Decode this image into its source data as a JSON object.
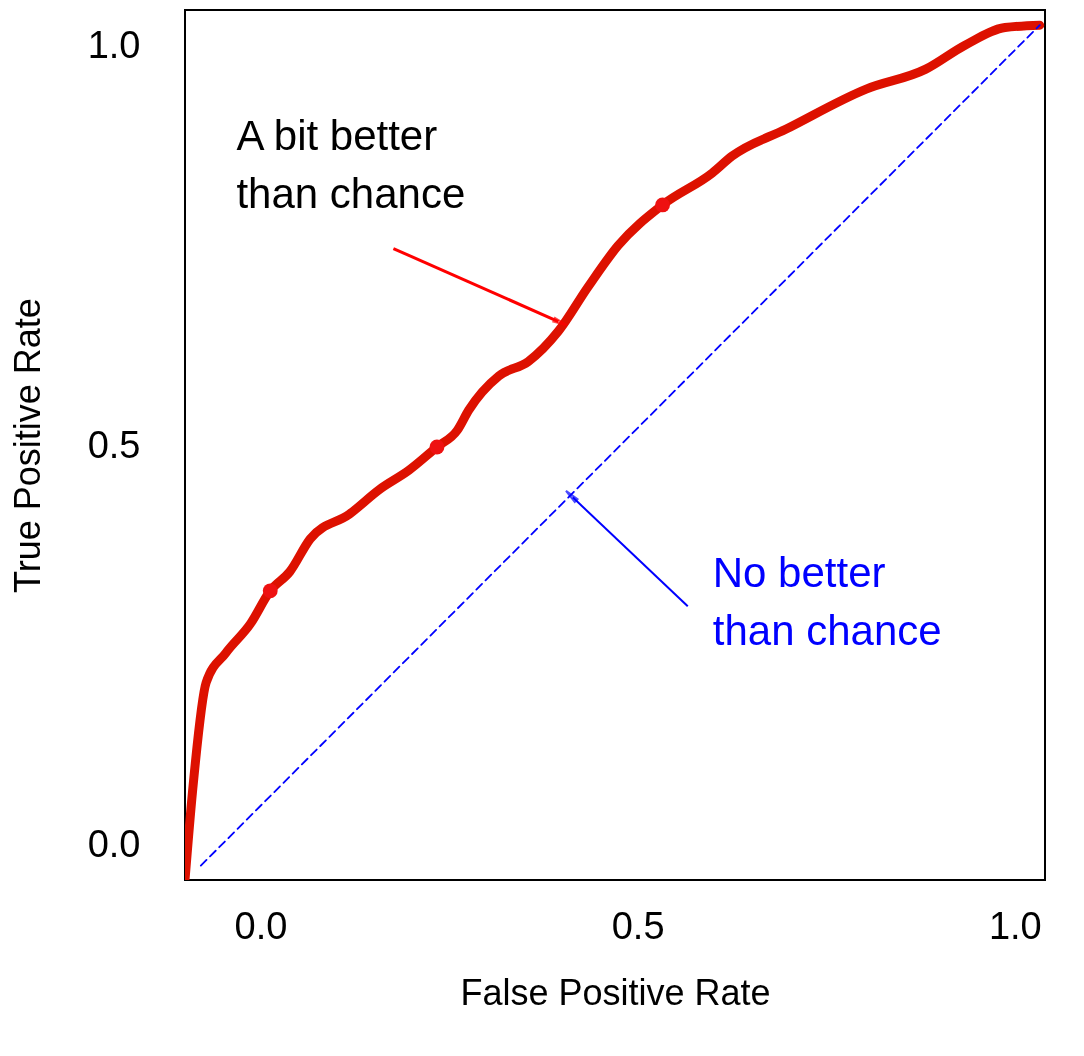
{
  "chart_data": {
    "type": "line",
    "xlabel": "False Positive Rate",
    "ylabel": "True Positive Rate",
    "xlim": [
      -0.1,
      1.04
    ],
    "ylim": [
      -0.043,
      1.046
    ],
    "xticks": [
      {
        "value": 0,
        "label": "0.0"
      },
      {
        "value": 0.5,
        "label": "0.5"
      },
      {
        "value": 1,
        "label": "1.0"
      }
    ],
    "yticks": [
      {
        "value": 0,
        "label": "0.0"
      },
      {
        "value": 0.5,
        "label": "0.5"
      },
      {
        "value": 1,
        "label": "1.0"
      }
    ],
    "grid": false,
    "series": [
      {
        "color": "#dd1100",
        "line_style": "solid",
        "x": [
          -0.1,
          -0.09,
          -0.072,
          -0.046,
          -0.013,
          0.013,
          0.039,
          0.066,
          0.118,
          0.158,
          0.197,
          0.234,
          0.261,
          0.276,
          0.316,
          0.355,
          0.395,
          0.434,
          0.474,
          0.533,
          0.599,
          0.625,
          0.697,
          0.803,
          0.882,
          0.934,
          0.987,
          1.033
        ],
        "values": [
          -0.043,
          0.068,
          0.204,
          0.241,
          0.278,
          0.319,
          0.343,
          0.384,
          0.415,
          0.446,
          0.47,
          0.499,
          0.52,
          0.545,
          0.588,
          0.606,
          0.644,
          0.699,
          0.751,
          0.802,
          0.842,
          0.863,
          0.897,
          0.947,
          0.972,
          1.002,
          1.024,
          1.027
        ]
      },
      {
        "type": "line",
        "color": "#0000ff",
        "line_style": "dashed",
        "x": [
          -0.079,
          1.033
        ],
        "values": [
          -0.025,
          1.027
        ]
      },
      {
        "type": "scatter",
        "color": "#ee1111",
        "marker": "circle",
        "x": [
          0.013,
          0.234,
          0.533
        ],
        "values": [
          0.319,
          0.499,
          0.802
        ]
      }
    ],
    "annotations": [
      {
        "text": "A bit better\nthan chance",
        "x": 0.395,
        "y": 0.656
      },
      {
        "text": "No better\nthan chance",
        "x": 0.414,
        "y": 0.436
      }
    ]
  }
}
